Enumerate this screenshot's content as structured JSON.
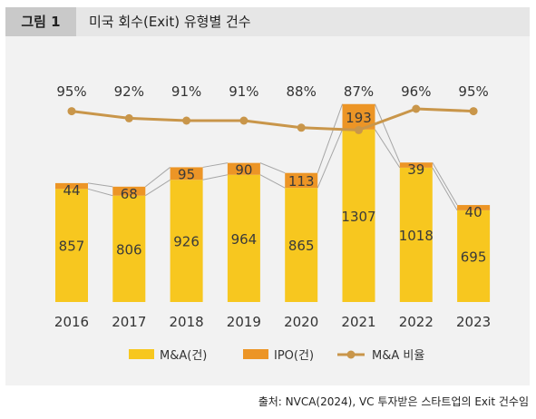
{
  "header": {
    "figure_label": "그림 1",
    "title": "미국 회수(Exit) 유형별 건수"
  },
  "colors": {
    "mna_bar": "#f7c71f",
    "ipo_bar": "#ec9526",
    "ratio_line": "#c9964a",
    "connector": "#a6a6a6"
  },
  "chart_data": {
    "type": "bar",
    "stacked": true,
    "categories": [
      "2016",
      "2017",
      "2018",
      "2019",
      "2020",
      "2021",
      "2022",
      "2023"
    ],
    "series": [
      {
        "name": "M&A(건)",
        "values": [
          857,
          806,
          926,
          964,
          865,
          1307,
          1018,
          695
        ]
      },
      {
        "name": "IPO(건)",
        "values": [
          44,
          68,
          95,
          90,
          113,
          193,
          39,
          40
        ]
      },
      {
        "name": "M&A 비율",
        "type": "line",
        "values": [
          95,
          92,
          91,
          91,
          88,
          87,
          96,
          95
        ],
        "labels": [
          "95%",
          "92%",
          "91%",
          "91%",
          "88%",
          "87%",
          "96%",
          "95%"
        ]
      }
    ],
    "legend_position": "bottom",
    "grid": false
  },
  "source": "출처: NVCA(2024), VC 투자받은 스타트업의 Exit 건수임"
}
